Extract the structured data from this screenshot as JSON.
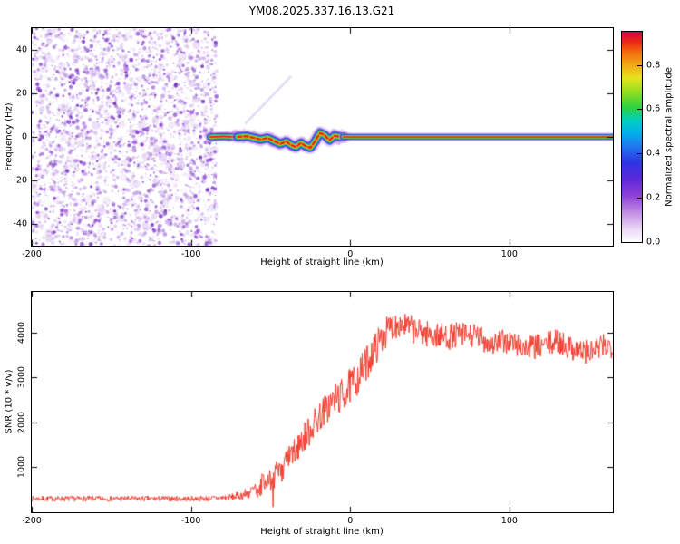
{
  "title": "YM08.2025.337.16.13.G21",
  "chart_data": [
    {
      "type": "heatmap",
      "panel": "spectrogram",
      "xlabel": "Height of straight line (km)",
      "ylabel": "Frequency (Hz)",
      "xlim": [
        -200,
        165
      ],
      "ylim": [
        -50,
        50
      ],
      "xticks": [
        -200,
        -100,
        0,
        100
      ],
      "xtick_labels": [
        "-200",
        "-100",
        "0",
        "100"
      ],
      "yticks": [
        40,
        20,
        0,
        -20,
        -40
      ],
      "ytick_labels": [
        "40",
        "20",
        "0",
        "-20",
        "-40"
      ],
      "colorbar": {
        "label": "Normalized spectral amplitude",
        "lim": [
          0,
          0.95
        ],
        "ticks": [
          0.0,
          0.2,
          0.4,
          0.6,
          0.8
        ],
        "tick_labels": [
          "0.0",
          "0.2",
          "0.4",
          "0.6",
          "0.8"
        ],
        "colormap": [
          {
            "p": 0.0,
            "c": "#ffffff"
          },
          {
            "p": 0.06,
            "c": "#ead9f5"
          },
          {
            "p": 0.14,
            "c": "#c18ee2"
          },
          {
            "p": 0.22,
            "c": "#9040d8"
          },
          {
            "p": 0.3,
            "c": "#5c28d8"
          },
          {
            "p": 0.38,
            "c": "#2d35e4"
          },
          {
            "p": 0.46,
            "c": "#1f7cf0"
          },
          {
            "p": 0.52,
            "c": "#00b0ea"
          },
          {
            "p": 0.58,
            "c": "#00cfc0"
          },
          {
            "p": 0.64,
            "c": "#2ed23c"
          },
          {
            "p": 0.72,
            "c": "#9ade20"
          },
          {
            "p": 0.78,
            "c": "#e6e41e"
          },
          {
            "p": 0.84,
            "c": "#f2a816"
          },
          {
            "p": 0.9,
            "c": "#f2700e"
          },
          {
            "p": 0.95,
            "c": "#ea2a10"
          },
          {
            "p": 1.0,
            "c": "#dc0050"
          }
        ]
      },
      "noise_region": {
        "description": "purple speckle background noise left of signal onset",
        "x_range": [
          -200,
          -85
        ],
        "count": 3800,
        "seed": 42,
        "colors": [
          "#b07ae0",
          "#9b59d6",
          "#8a3fd6",
          "#7a2fc8",
          "#6a28b8",
          "#c79ae6"
        ]
      },
      "artifact_streak": {
        "x1": -66,
        "f1": 6,
        "x2": -37,
        "f2": 28,
        "color": "rgba(178,136,230,0.32)"
      },
      "signal_track": {
        "x": [
          -88,
          -80,
          -72,
          -65,
          -60,
          -56,
          -52,
          -48,
          -44,
          -40,
          -37,
          -34,
          -31,
          -28,
          -25,
          -22,
          -19,
          -16,
          -13,
          -10,
          -6,
          0,
          20,
          60,
          100,
          165
        ],
        "freq": [
          0,
          0.2,
          0,
          0.3,
          -0.5,
          -1.2,
          -0.5,
          -1.8,
          -3.2,
          -2.2,
          -3.8,
          -4.6,
          -2.8,
          -4.2,
          -5.0,
          -2.0,
          1.8,
          0.8,
          -1.5,
          0.5,
          0,
          0,
          0,
          0,
          0,
          0
        ]
      },
      "signal_layers": [
        {
          "color": "rgba(186,140,235,0.4)",
          "width": 9.5
        },
        {
          "color": "rgba(122,47,212,0.75)",
          "width": 6.8
        },
        {
          "color": "#2b3de0",
          "width": 5.4
        },
        {
          "color": "#00b4e6",
          "width": 4.4
        },
        {
          "color": "#2ecc2e",
          "width": 3.4
        },
        {
          "color": "#e8e020",
          "width": 2.5
        },
        {
          "color": "#f08c12",
          "width": 1.9
        },
        {
          "color": "#e81414",
          "width": 1.25
        }
      ]
    },
    {
      "type": "line",
      "panel": "snr",
      "xlabel": "Height of straight line (km)",
      "ylabel": "SNR (10 * v/v)",
      "xlim": [
        -200,
        165
      ],
      "ylim": [
        0,
        4900
      ],
      "xticks": [
        -200,
        -100,
        0,
        100
      ],
      "xtick_labels": [
        "-200",
        "-100",
        "0",
        "100"
      ],
      "yticks": [
        1000,
        2000,
        3000,
        4000
      ],
      "ytick_labels": [
        "1000",
        "2000",
        "3000",
        "4000"
      ],
      "series": [
        {
          "name": "SNR",
          "color": "#f23c2e",
          "seed": 7,
          "anchors_x": [
            -200,
            -150,
            -120,
            -100,
            -85,
            -75,
            -68,
            -62,
            -56,
            -50,
            -45,
            -40,
            -35,
            -30,
            -25,
            -20,
            -15,
            -10,
            -5,
            0,
            5,
            10,
            15,
            20,
            25,
            30,
            35,
            40,
            50,
            60,
            70,
            80,
            90,
            100,
            110,
            120,
            130,
            140,
            150,
            160,
            165
          ],
          "anchors_base": [
            300,
            300,
            300,
            300,
            310,
            330,
            380,
            450,
            550,
            750,
            900,
            1100,
            1350,
            1600,
            1850,
            2100,
            2300,
            2500,
            2600,
            2800,
            3000,
            3300,
            3600,
            3900,
            4100,
            4200,
            4150,
            4050,
            3950,
            3900,
            3950,
            3900,
            3750,
            3800,
            3650,
            3700,
            3800,
            3650,
            3550,
            3700,
            3700
          ],
          "anchors_noise": [
            60,
            60,
            60,
            60,
            65,
            75,
            100,
            160,
            230,
            260,
            280,
            300,
            320,
            340,
            350,
            350,
            360,
            380,
            390,
            400,
            400,
            400,
            380,
            360,
            330,
            310,
            300,
            300,
            300,
            300,
            290,
            280,
            280,
            280,
            280,
            280,
            280,
            280,
            280,
            280,
            280
          ]
        }
      ]
    }
  ]
}
